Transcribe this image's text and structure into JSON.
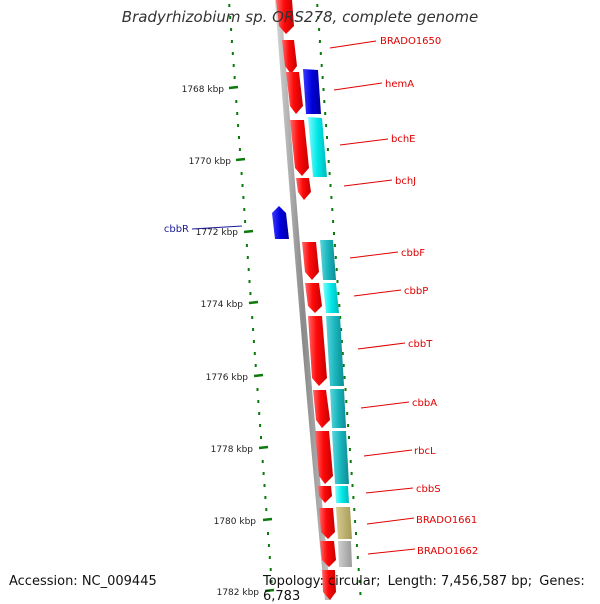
{
  "header": {
    "title": "Bradyrhizobium sp. ORS278, complete genome"
  },
  "footer": {
    "accession": "Accession: NC_009445",
    "topology": "Topology: circular;",
    "length": "Length: 7,456,587 bp;",
    "genes": "Genes: 6,783"
  },
  "ticks": [
    "1768 kbp",
    "1770 kbp",
    "1772 kbp",
    "1774 kbp",
    "1776 kbp",
    "1778 kbp",
    "1780 kbp",
    "1782 kbp"
  ],
  "genes": [
    {
      "name": "BRADO1650",
      "color": "#e00000"
    },
    {
      "name": "hemA",
      "color": "#e00000"
    },
    {
      "name": "bchE",
      "color": "#e00000"
    },
    {
      "name": "bchJ",
      "color": "#e00000"
    },
    {
      "name": "cbbR",
      "color": "#1a1a9a"
    },
    {
      "name": "cbbF",
      "color": "#e00000"
    },
    {
      "name": "cbbP",
      "color": "#e00000"
    },
    {
      "name": "cbbT",
      "color": "#e00000"
    },
    {
      "name": "cbbA",
      "color": "#e00000"
    },
    {
      "name": "rbcL",
      "color": "#e00000"
    },
    {
      "name": "cbbS",
      "color": "#e00000"
    },
    {
      "name": "BRADO1661",
      "color": "#e00000"
    },
    {
      "name": "BRADO1662",
      "color": "#e00000"
    }
  ],
  "colors": {
    "backbone": "#999999",
    "cds": "#ff1a1a",
    "cds_reverse": "#0000cc",
    "function_blue": "#0000dd",
    "function_cyan": "#00e5e5",
    "function_teal": "#19b8c0",
    "function_olive": "#b8ad6a",
    "function_gray": "#aaaaaa",
    "gc_dots": "#0a7a0a"
  }
}
